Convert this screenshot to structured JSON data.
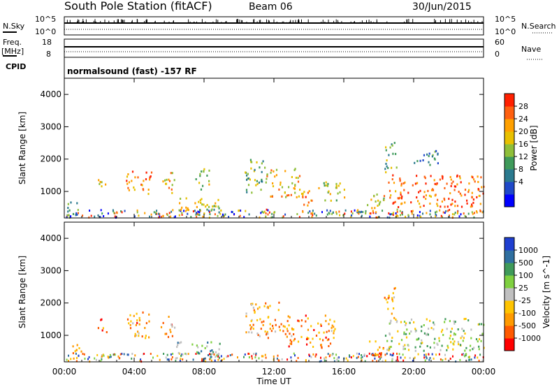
{
  "header": {
    "station": "South Pole Station (fitACF)",
    "beam": "Beam 06",
    "date": "30/Jun/2015"
  },
  "top_panels": {
    "nsky_label": "N.Sky",
    "nsky_tick_high": "10^5",
    "nsky_tick_low": "10^0",
    "nsearch_label": "N.Search",
    "nsearch_tick_high": "10^5",
    "nsearch_tick_low": "10^0",
    "freq_label": "Freq.",
    "freq_unit": "[MHz]",
    "freq_tick_high": "18",
    "freq_tick_low": "8",
    "nave_label": "Nave",
    "nave_tick_high": "60",
    "nave_tick_low": "0",
    "cpid_label": "CPID",
    "cpid_text": "normalsound (fast) -157 RF"
  },
  "chart_data": [
    {
      "type": "heatmap",
      "panel": "power",
      "ylabel": "Slant Range [km]",
      "xlabel": "",
      "ylim": [
        180,
        4500
      ],
      "yticks": [
        1000,
        2000,
        3000,
        4000
      ],
      "xticks": [
        "00:00",
        "04:00",
        "08:00",
        "12:00",
        "16:00",
        "20:00",
        "00:00"
      ],
      "colorbar": {
        "label": "Power [dB]",
        "ticks": [
          "28",
          "24",
          "20",
          "16",
          "12",
          "8",
          "4"
        ],
        "colors": [
          "#0000ff",
          "#1f49c9",
          "#2b7a8f",
          "#3f9a5a",
          "#8fbf3a",
          "#e8c000",
          "#ffa000",
          "#ff6010",
          "#ff2000"
        ]
      },
      "echo_regions": [
        {
          "t_start": 0.1,
          "t_end": 0.9,
          "r_min": 180,
          "r_max": 700,
          "level": 0.3
        },
        {
          "t_start": 1.9,
          "t_end": 2.4,
          "r_min": 1000,
          "r_max": 1500,
          "level": 0.55
        },
        {
          "t_start": 3.5,
          "t_end": 5.0,
          "r_min": 900,
          "r_max": 1600,
          "level": 0.8
        },
        {
          "t_start": 5.5,
          "t_end": 6.3,
          "r_min": 900,
          "r_max": 1600,
          "level": 0.65
        },
        {
          "t_start": 6.4,
          "t_end": 9.0,
          "r_min": 300,
          "r_max": 800,
          "level": 0.6
        },
        {
          "t_start": 7.5,
          "t_end": 8.3,
          "r_min": 1000,
          "r_max": 1700,
          "level": 0.55
        },
        {
          "t_start": 10.3,
          "t_end": 11.5,
          "r_min": 900,
          "r_max": 2000,
          "level": 0.45
        },
        {
          "t_start": 11.5,
          "t_end": 13.5,
          "r_min": 800,
          "r_max": 1700,
          "level": 0.65
        },
        {
          "t_start": 13.5,
          "t_end": 14.5,
          "r_min": 500,
          "r_max": 1000,
          "level": 0.75
        },
        {
          "t_start": 14.5,
          "t_end": 16.0,
          "r_min": 700,
          "r_max": 1300,
          "level": 0.55
        },
        {
          "t_start": 17.2,
          "t_end": 18.5,
          "r_min": 300,
          "r_max": 900,
          "level": 0.6
        },
        {
          "t_start": 18.5,
          "t_end": 24.0,
          "r_min": 500,
          "r_max": 1500,
          "level": 0.85
        },
        {
          "t_start": 18.3,
          "t_end": 19.0,
          "r_min": 1500,
          "r_max": 2500,
          "level": 0.45
        },
        {
          "t_start": 20.0,
          "t_end": 21.5,
          "r_min": 1800,
          "r_max": 2300,
          "level": 0.3
        }
      ]
    },
    {
      "type": "heatmap",
      "panel": "velocity",
      "ylabel": "Slant Range [km]",
      "xlabel": "Time UT",
      "ylim": [
        180,
        4500
      ],
      "yticks": [
        1000,
        2000,
        3000,
        4000
      ],
      "xticks": [
        "00:00",
        "04:00",
        "08:00",
        "12:00",
        "16:00",
        "20:00",
        "00:00"
      ],
      "colorbar": {
        "label": "Velocity [m s^-1]",
        "ticks": [
          "1000",
          "500",
          "100",
          "25",
          "-25",
          "-100",
          "-500",
          "-1000"
        ],
        "colors": [
          "#ff0000",
          "#ff5a00",
          "#ff9a00",
          "#ffc400",
          "#c0c0c0",
          "#7fd040",
          "#3f9a5a",
          "#2f6fa0",
          "#1f3fd0"
        ]
      },
      "echo_regions": [
        {
          "t_start": 0.1,
          "t_end": 1.0,
          "r_min": 180,
          "r_max": 700,
          "level": 0.3
        },
        {
          "t_start": 1.9,
          "t_end": 2.4,
          "r_min": 1000,
          "r_max": 1500,
          "level": 0.25
        },
        {
          "t_start": 3.5,
          "t_end": 5.0,
          "r_min": 900,
          "r_max": 1700,
          "level": 0.3
        },
        {
          "t_start": 5.5,
          "t_end": 6.3,
          "r_min": 900,
          "r_max": 1600,
          "level": 0.3
        },
        {
          "t_start": 6.4,
          "t_end": 9.0,
          "r_min": 300,
          "r_max": 800,
          "level": 0.65
        },
        {
          "t_start": 10.3,
          "t_end": 12.5,
          "r_min": 900,
          "r_max": 2000,
          "level": 0.3
        },
        {
          "t_start": 12.5,
          "t_end": 15.5,
          "r_min": 600,
          "r_max": 1600,
          "level": 0.25
        },
        {
          "t_start": 17.2,
          "t_end": 18.3,
          "r_min": 250,
          "r_max": 800,
          "level": 0.2
        },
        {
          "t_start": 18.3,
          "t_end": 24.0,
          "r_min": 500,
          "r_max": 1500,
          "level": 0.55
        },
        {
          "t_start": 18.3,
          "t_end": 19.0,
          "r_min": 1500,
          "r_max": 2500,
          "level": 0.3
        }
      ]
    }
  ]
}
